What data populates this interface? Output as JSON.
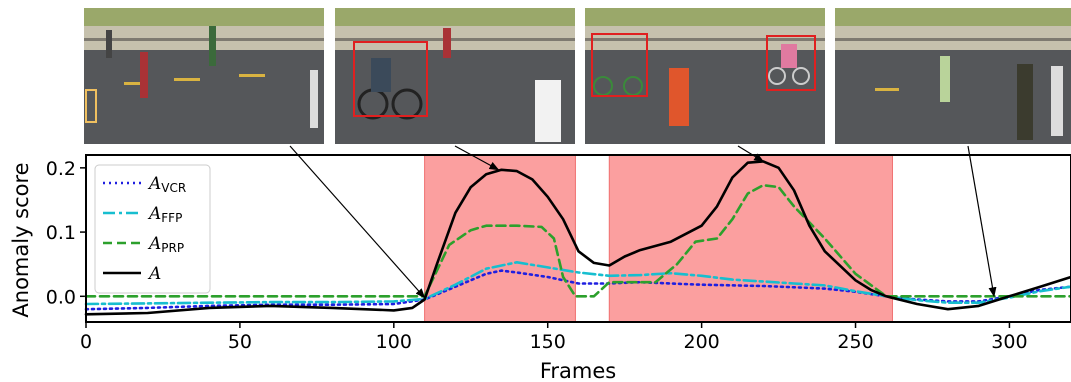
{
  "chart_data": {
    "type": "line",
    "xlabel": "Frames",
    "ylabel": "Anomaly score",
    "xlim": [
      0,
      320
    ],
    "ylim": [
      -0.04,
      0.22
    ],
    "x_ticks": [
      "0",
      "50",
      "100",
      "150",
      "200",
      "250",
      "300"
    ],
    "x_tick_values": [
      0,
      50,
      100,
      150,
      200,
      250,
      300
    ],
    "y_ticks": [
      "0.0",
      "0.1",
      "0.2"
    ],
    "y_tick_values": [
      0.0,
      0.1,
      0.2
    ],
    "legend_position": "upper-left",
    "anomaly_regions": [
      {
        "start": 110,
        "end": 159,
        "color": "#fb9a9a"
      },
      {
        "start": 170,
        "end": 262,
        "color": "#fb9a9a"
      }
    ],
    "series": [
      {
        "name": "VCR",
        "legend_base": "A",
        "legend_sub": "VCR",
        "color": "#1f1fe0",
        "dash": "2,4",
        "width": 2.6,
        "x": [
          0,
          20,
          40,
          60,
          80,
          100,
          110,
          120,
          130,
          135,
          140,
          150,
          160,
          170,
          180,
          190,
          200,
          220,
          240,
          250,
          260,
          270,
          280,
          290,
          300,
          310,
          320
        ],
        "y": [
          -0.02,
          -0.018,
          -0.015,
          -0.013,
          -0.013,
          -0.012,
          -0.005,
          0.015,
          0.035,
          0.04,
          0.037,
          0.03,
          0.02,
          0.02,
          0.022,
          0.02,
          0.018,
          0.016,
          0.012,
          0.007,
          0.0,
          -0.005,
          -0.008,
          -0.008,
          0.0,
          0.01,
          0.015
        ]
      },
      {
        "name": "FFP",
        "legend_base": "A",
        "legend_sub": "FFP",
        "color": "#17becf",
        "dash": "12,4,3,4",
        "width": 2.6,
        "x": [
          0,
          20,
          40,
          60,
          80,
          100,
          110,
          120,
          130,
          140,
          150,
          160,
          170,
          180,
          190,
          200,
          210,
          220,
          230,
          240,
          250,
          260,
          270,
          280,
          290,
          300,
          310,
          320
        ],
        "y": [
          -0.012,
          -0.011,
          -0.01,
          -0.009,
          -0.009,
          -0.008,
          -0.004,
          0.018,
          0.043,
          0.053,
          0.045,
          0.037,
          0.032,
          0.033,
          0.036,
          0.032,
          0.026,
          0.023,
          0.02,
          0.017,
          0.008,
          0.0,
          -0.006,
          -0.01,
          -0.01,
          -0.002,
          0.008,
          0.015
        ]
      },
      {
        "name": "PRP",
        "legend_base": "A",
        "legend_sub": "PRP",
        "color": "#2ca02c",
        "dash": "9,5",
        "width": 2.6,
        "x": [
          0,
          100,
          110,
          113,
          118,
          125,
          130,
          140,
          148,
          152,
          155,
          159,
          165,
          170,
          180,
          185,
          192,
          198,
          205,
          210,
          215,
          220,
          225,
          230,
          240,
          250,
          260,
          320
        ],
        "y": [
          0.0,
          0.0,
          0.0,
          0.03,
          0.08,
          0.103,
          0.11,
          0.11,
          0.108,
          0.09,
          0.03,
          0.0,
          0.0,
          0.022,
          0.022,
          0.022,
          0.05,
          0.085,
          0.09,
          0.12,
          0.16,
          0.173,
          0.17,
          0.14,
          0.09,
          0.035,
          0.0,
          0.0
        ]
      },
      {
        "name": "A",
        "legend_base": "A",
        "legend_sub": "",
        "color": "#000000",
        "dash": "",
        "width": 2.6,
        "x": [
          0,
          20,
          40,
          60,
          80,
          100,
          106,
          110,
          114,
          120,
          125,
          130,
          135,
          140,
          145,
          150,
          155,
          160,
          165,
          170,
          175,
          180,
          190,
          200,
          205,
          210,
          215,
          220,
          225,
          230,
          235,
          240,
          250,
          255,
          260,
          270,
          280,
          290,
          300,
          310,
          320
        ],
        "y": [
          -0.028,
          -0.026,
          -0.018,
          -0.015,
          -0.018,
          -0.022,
          -0.018,
          -0.005,
          0.05,
          0.13,
          0.17,
          0.19,
          0.197,
          0.195,
          0.182,
          0.155,
          0.12,
          0.07,
          0.052,
          0.048,
          0.062,
          0.072,
          0.085,
          0.11,
          0.14,
          0.185,
          0.208,
          0.21,
          0.2,
          0.165,
          0.11,
          0.07,
          0.025,
          0.01,
          0.0,
          -0.012,
          -0.02,
          -0.015,
          0.0,
          0.015,
          0.03
        ]
      }
    ],
    "annotation_arrows": [
      {
        "from_thumbnail": 0,
        "to_x": 110,
        "to_y": -0.002
      },
      {
        "from_thumbnail": 1,
        "to_x": 134,
        "to_y": 0.197
      },
      {
        "from_thumbnail": 2,
        "to_x": 220,
        "to_y": 0.21
      },
      {
        "from_thumbnail": 3,
        "to_x": 295,
        "to_y": 0.0
      }
    ]
  },
  "thumbnails": [
    {
      "name": "frame-normal-start",
      "boxes": 0
    },
    {
      "name": "frame-bicycle-anomaly",
      "boxes": 1
    },
    {
      "name": "frame-two-bicycles-anomaly",
      "boxes": 2
    },
    {
      "name": "frame-normal-end",
      "boxes": 0
    }
  ]
}
